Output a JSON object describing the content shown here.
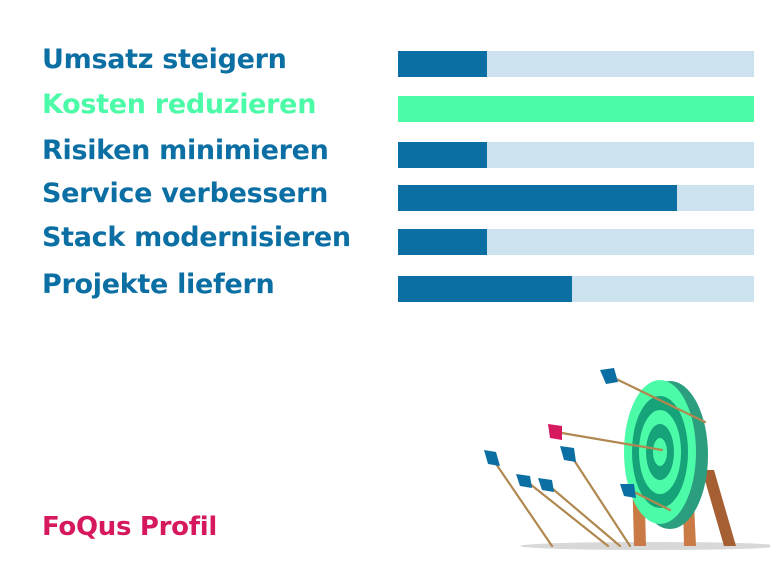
{
  "colors": {
    "primary": "#0b6fa4",
    "highlight": "#4cfba8",
    "track": "#cce2ee",
    "brand": "#d6185f"
  },
  "goals": [
    {
      "label": "Umsatz steigern",
      "fill": 0.25,
      "highlighted": false
    },
    {
      "label": "Kosten reduzieren",
      "fill": 1.0,
      "highlighted": true
    },
    {
      "label": "Risiken minimieren",
      "fill": 0.25,
      "highlighted": false
    },
    {
      "label": "Service verbessern",
      "fill": 0.785,
      "highlighted": false
    },
    {
      "label": "Stack modernisieren",
      "fill": 0.25,
      "highlighted": false
    },
    {
      "label": "Projekte liefern",
      "fill": 0.49,
      "highlighted": false
    }
  ],
  "brand": {
    "label": "FoQus Profil"
  },
  "illustration": {
    "icon": "target-with-arrows-icon"
  }
}
